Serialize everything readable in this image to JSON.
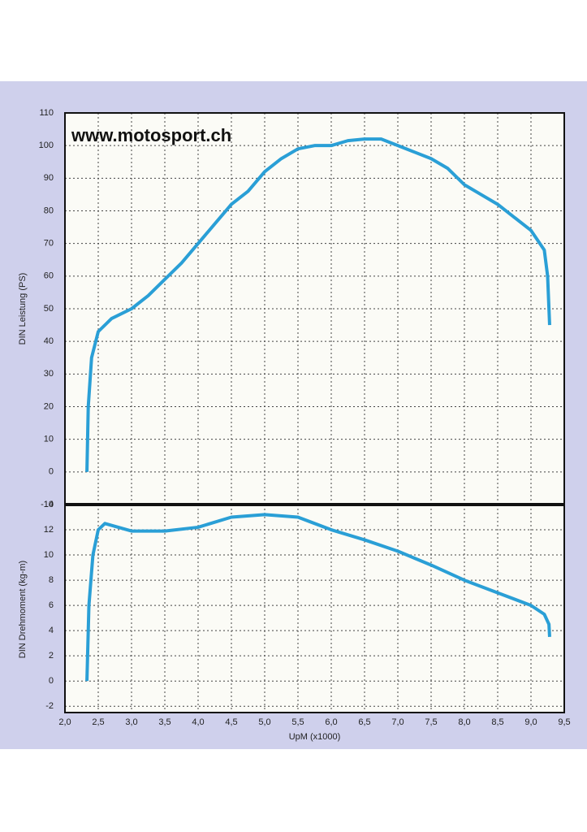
{
  "chart_data": [
    {
      "type": "line",
      "annotation": "www.motosport.ch",
      "ylabel": "DIN Leistung (PS)",
      "xlim": [
        2.0,
        9.5
      ],
      "ylim": [
        -10,
        110
      ],
      "yticks": [
        110,
        100,
        90,
        80,
        70,
        60,
        50,
        40,
        30,
        20,
        10,
        0,
        -10
      ],
      "grid": true,
      "series": [
        {
          "color": "#2a9fd6",
          "x": [
            2.33,
            2.35,
            2.4,
            2.5,
            2.7,
            3.0,
            3.25,
            3.5,
            3.75,
            4.0,
            4.25,
            4.5,
            4.75,
            5.0,
            5.25,
            5.5,
            5.75,
            6.0,
            6.25,
            6.5,
            6.75,
            7.0,
            7.25,
            7.5,
            7.75,
            8.0,
            8.25,
            8.5,
            8.75,
            9.0,
            9.2,
            9.25,
            9.28
          ],
          "values": [
            0,
            20,
            35,
            43,
            47,
            50,
            54,
            59,
            64,
            70,
            76,
            82,
            86,
            92,
            96,
            99,
            100,
            100,
            101.5,
            102,
            102,
            100,
            98,
            96,
            93,
            88,
            85,
            82,
            78,
            74,
            68,
            60,
            45
          ]
        }
      ]
    },
    {
      "type": "line",
      "ylabel": "DIN Drehmoment (kg-m)",
      "xlabel": "UpM (x1000)",
      "xlim": [
        2.0,
        9.5
      ],
      "ylim": [
        -2.5,
        14
      ],
      "xticks": [
        {
          "value": 2.0,
          "label": "2,0"
        },
        {
          "value": 2.5,
          "label": "2,5"
        },
        {
          "value": 3.0,
          "label": "3,0"
        },
        {
          "value": 3.5,
          "label": "3,5"
        },
        {
          "value": 4.0,
          "label": "4,0"
        },
        {
          "value": 4.5,
          "label": "4,5"
        },
        {
          "value": 5.0,
          "label": "5,0"
        },
        {
          "value": 5.5,
          "label": "5,5"
        },
        {
          "value": 6.0,
          "label": "6,0"
        },
        {
          "value": 6.5,
          "label": "6,5"
        },
        {
          "value": 7.0,
          "label": "7,0"
        },
        {
          "value": 7.5,
          "label": "7,5"
        },
        {
          "value": 8.0,
          "label": "8,0"
        },
        {
          "value": 8.5,
          "label": "8,5"
        },
        {
          "value": 9.0,
          "label": "9,0"
        },
        {
          "value": 9.5,
          "label": "9,5"
        }
      ],
      "yticks": [
        14,
        12,
        10,
        8,
        6,
        4,
        2,
        0,
        -2
      ],
      "grid": true,
      "series": [
        {
          "color": "#2a9fd6",
          "x": [
            2.33,
            2.36,
            2.42,
            2.5,
            2.6,
            2.8,
            3.0,
            3.5,
            4.0,
            4.5,
            5.0,
            5.5,
            6.0,
            6.5,
            7.0,
            7.5,
            8.0,
            8.5,
            9.0,
            9.2,
            9.27,
            9.28
          ],
          "values": [
            0,
            6,
            10,
            12,
            12.5,
            12.2,
            11.9,
            11.9,
            12.2,
            13.0,
            13.2,
            13.0,
            12.0,
            11.2,
            10.3,
            9.2,
            8.0,
            7.0,
            6.0,
            5.3,
            4.5,
            3.5
          ]
        }
      ]
    }
  ]
}
